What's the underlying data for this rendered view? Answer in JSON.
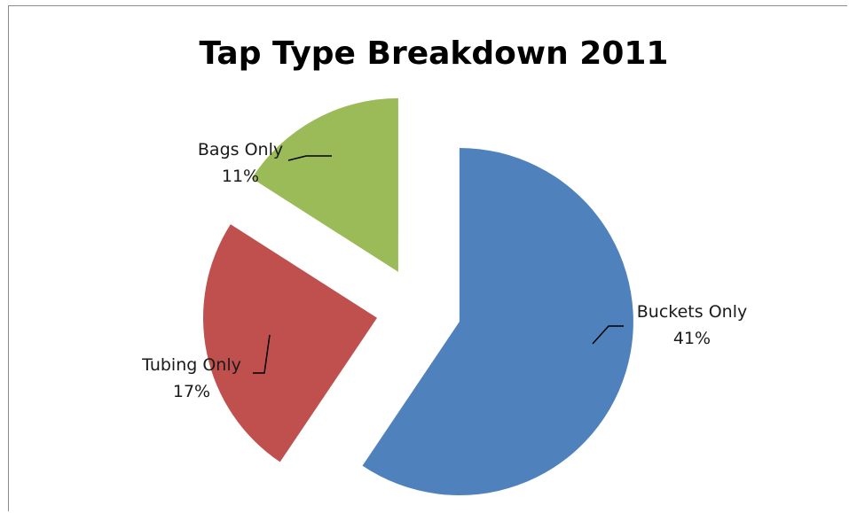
{
  "chart_data": {
    "type": "pie",
    "title": "Tap Type Breakdown 2011",
    "series": [
      {
        "name": "",
        "categories": [
          "Buckets Only",
          "Tubing Only",
          "Bags Only"
        ],
        "labels": [
          "Buckets Only",
          "Tubing Only",
          "Bags Only"
        ],
        "percent_labels": [
          "41%",
          "17%",
          "11%"
        ],
        "values": [
          41,
          17,
          11
        ],
        "colors": [
          "#4f81bd",
          "#c0504d",
          "#9bbb59"
        ]
      }
    ],
    "exploded": true,
    "legend": "none"
  }
}
